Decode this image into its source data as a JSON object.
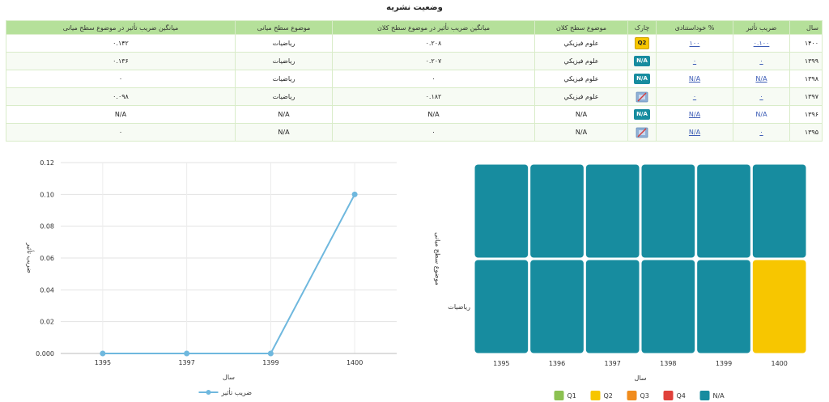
{
  "page_title": "وضعیت نشریه",
  "table": {
    "headers": {
      "year": "سال",
      "if": "ضریب تأثیر",
      "selfcite": "% خوداستنادی",
      "quartile": "چارک",
      "broad": "موضوع سطح کلان",
      "broad_avg": "میانگین ضریب تأثیر در موضوع سطح کلان",
      "mid": "موضوع سطح میانی",
      "mid_avg": "میانگین ضریب تأثیر در موضوع سطح میانی"
    },
    "rows": [
      {
        "year": "۱۴۰۰",
        "if": "۰.۱۰۰",
        "selfcite": "۱۰۰",
        "quartile": "Q2",
        "broad": "علوم فیزیکي",
        "broad_avg": "۰.۲۰۸",
        "mid": "رياضيات",
        "mid_avg": "۰.۱۴۲"
      },
      {
        "year": "۱۳۹۹",
        "if": "۰",
        "selfcite": "۰",
        "quartile": "N/A",
        "broad": "علوم فیزیکي",
        "broad_avg": "۰.۲۰۷",
        "mid": "رياضيات",
        "mid_avg": "۰.۱۳۶"
      },
      {
        "year": "۱۳۹۸",
        "if": "N/A",
        "selfcite": "N/A",
        "quartile": "N/A",
        "broad": "علوم فیزیکي",
        "broad_avg": "۰",
        "mid": "رياضيات",
        "mid_avg": "۰"
      },
      {
        "year": "۱۳۹۷",
        "if": "۰",
        "selfcite": "۰",
        "quartile": "none",
        "broad": "علوم فیزیکي",
        "broad_avg": "۰.۱۸۲",
        "mid": "رياضيات",
        "mid_avg": "۰.۰۹۸"
      },
      {
        "year": "۱۳۹۶",
        "if": "N/A",
        "selfcite": "N/A",
        "quartile": "N/A",
        "broad": "N/A",
        "broad_avg": "N/A",
        "mid": "N/A",
        "mid_avg": "N/A"
      },
      {
        "year": "۱۳۹۵",
        "if": "۰",
        "selfcite": "N/A",
        "quartile": "none",
        "broad": "N/A",
        "broad_avg": "۰",
        "mid": "N/A",
        "mid_avg": "۰"
      }
    ]
  },
  "colors": {
    "q1": "#8cc152",
    "q2": "#f7c600",
    "q3": "#f08c1e",
    "q4": "#e0413b",
    "na": "#178c9f",
    "line": "#6fb8de"
  },
  "chart_data": [
    {
      "type": "line",
      "x": [
        "1395",
        "1397",
        "1399",
        "1400"
      ],
      "series": [
        {
          "name": "ضریب تأثیر",
          "values": [
            0,
            0,
            0,
            0.1
          ]
        }
      ],
      "xlabel": "سال",
      "ylabel": "ضریب تأثیر",
      "yticks": [
        "0.000",
        "0.02",
        "0.04",
        "0.06",
        "0.08",
        "0.10",
        "0.12"
      ],
      "ylim": [
        0,
        0.12
      ],
      "grid": true,
      "legend": "bottom"
    },
    {
      "type": "heatmap",
      "x": [
        "1395",
        "1396",
        "1397",
        "1398",
        "1399",
        "1400"
      ],
      "rows": [
        "",
        "رياضيات"
      ],
      "cells": [
        [
          "N/A",
          "N/A",
          "N/A",
          "N/A",
          "N/A",
          "N/A"
        ],
        [
          "N/A",
          "N/A",
          "N/A",
          "N/A",
          "N/A",
          "Q2"
        ]
      ],
      "xlabel": "سال",
      "ylabel": "موضوع سطح میانی",
      "legend": [
        "Q1",
        "Q2",
        "Q3",
        "Q4",
        "N/A"
      ],
      "legend_position": "bottom"
    }
  ]
}
